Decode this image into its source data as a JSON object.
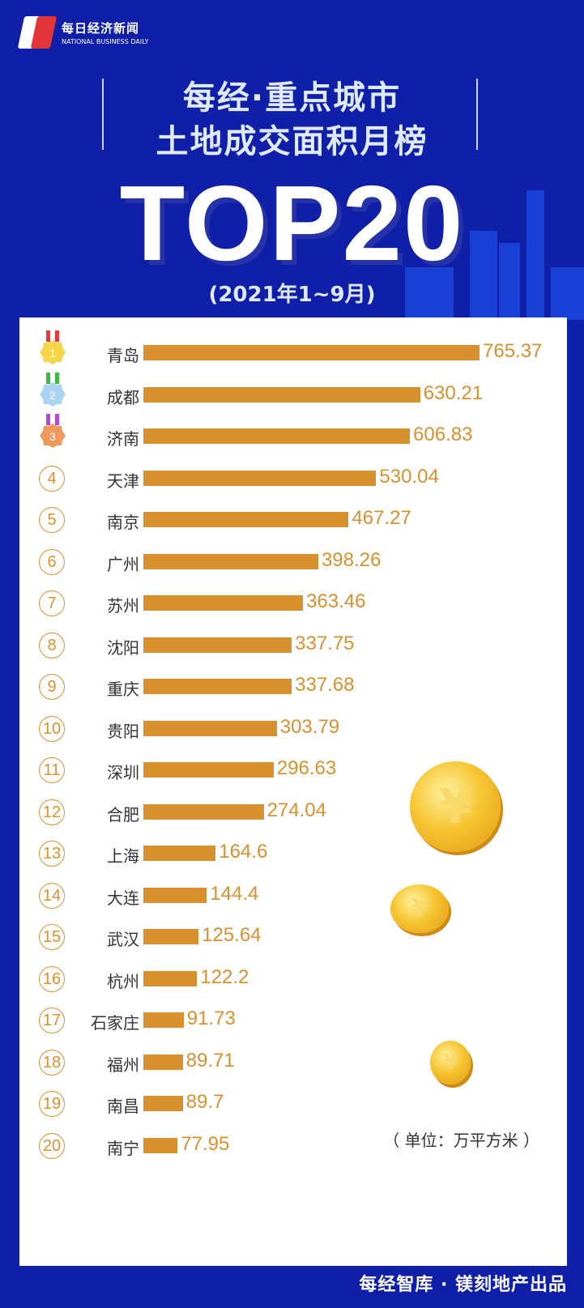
{
  "logo": {
    "cn": "每日经济新闻",
    "en": "NATIONAL BUSINESS DAILY"
  },
  "header": {
    "title_line1": "每经·重点城市",
    "title_line2": "土地成交面积月榜",
    "top": "TOP20",
    "period": "(2021年1~9月)"
  },
  "chart_data": {
    "type": "bar",
    "orientation": "horizontal",
    "ranks": [
      "1",
      "2",
      "3",
      "4",
      "5",
      "6",
      "7",
      "8",
      "9",
      "10",
      "11",
      "12",
      "13",
      "14",
      "15",
      "16",
      "17",
      "18",
      "19",
      "20"
    ],
    "categories": [
      "青岛",
      "成都",
      "济南",
      "天津",
      "南京",
      "广州",
      "苏州",
      "沈阳",
      "重庆",
      "贵阳",
      "深圳",
      "合肥",
      "上海",
      "大连",
      "武汉",
      "杭州",
      "石家庄",
      "福州",
      "南昌",
      "南宁"
    ],
    "values": [
      765.37,
      630.21,
      606.83,
      530.04,
      467.27,
      398.26,
      363.46,
      337.75,
      337.68,
      303.79,
      296.63,
      274.04,
      164.6,
      144.4,
      125.64,
      122.2,
      91.73,
      89.71,
      89.7,
      77.95
    ],
    "value_labels": [
      "765.37",
      "630.21",
      "606.83",
      "530.04",
      "467.27",
      "398.26",
      "363.46",
      "337.75",
      "337.68",
      "303.79",
      "296.63",
      "274.04",
      "164.6",
      "144.4",
      "125.64",
      "122.2",
      "91.73",
      "89.71",
      "89.7",
      "77.95"
    ],
    "unit": "（ 单位：万平方米 ）",
    "bar_color": "#d9902f",
    "medal_colors": [
      "#f7d64a",
      "#a9d4f2",
      "#ee9a5f"
    ],
    "ribbon_colors": [
      "#e83a3a",
      "#3dbb3d",
      "#b04ad8"
    ],
    "grid": false
  },
  "footer": {
    "credit": "每经智库 · 镁刻地产出品"
  },
  "colors": {
    "background": "#0f1fa8",
    "title": "#dfe9ff"
  }
}
